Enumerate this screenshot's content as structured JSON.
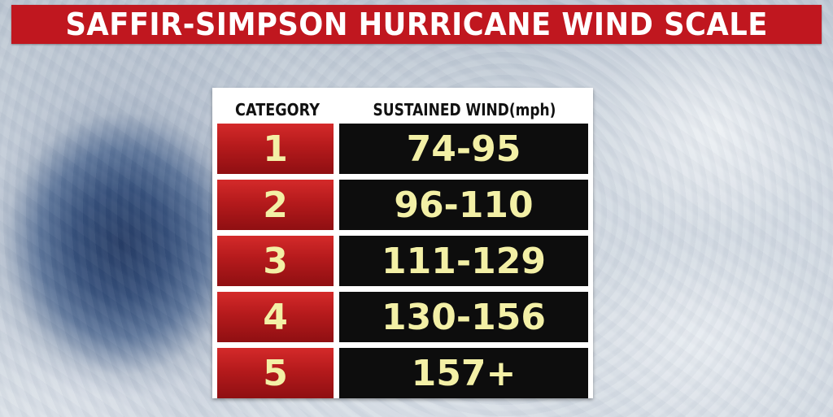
{
  "title": "SAFFIR-SIMPSON HURRICANE WIND SCALE",
  "table": {
    "headers": {
      "category": "CATEGORY",
      "wind": "SUSTAINED WIND(mph)"
    },
    "rows": [
      {
        "category": "1",
        "wind": "74-95"
      },
      {
        "category": "2",
        "wind": "96-110"
      },
      {
        "category": "3",
        "wind": "111-129"
      },
      {
        "category": "4",
        "wind": "130-156"
      },
      {
        "category": "5",
        "wind": "157+"
      }
    ]
  },
  "colors": {
    "title_bg": "#c0171f",
    "title_text": "#ffffff",
    "category_cell": "#b51a1c",
    "wind_cell": "#0d0d0d",
    "cell_text": "#f3f0a6"
  }
}
